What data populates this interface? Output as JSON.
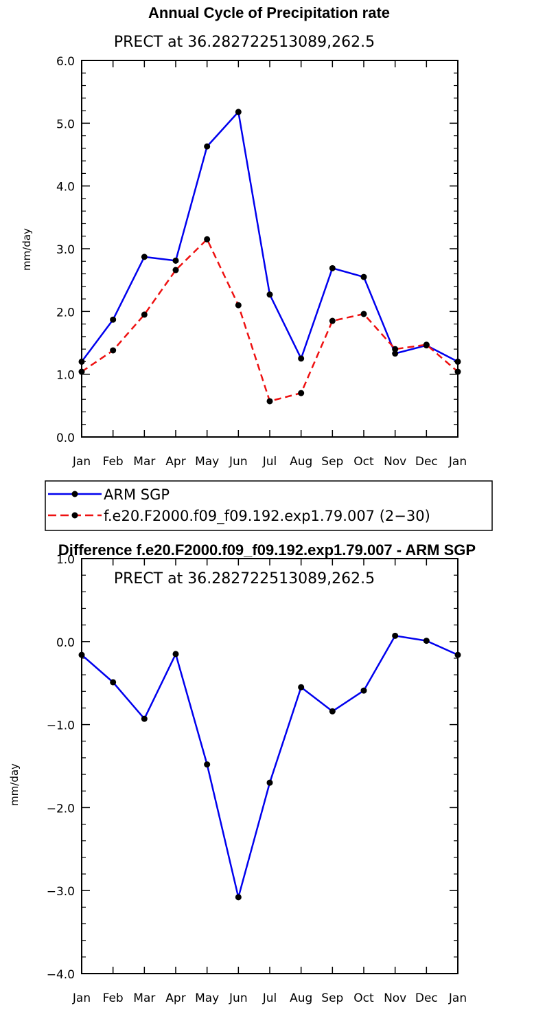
{
  "chart_data": [
    {
      "type": "line",
      "title": "Annual Cycle of Precipitation rate",
      "subtitle": "PRECT at 36.282722513089,262.5",
      "xlabel": "",
      "ylabel": "mm/day",
      "categories": [
        "Jan",
        "Feb",
        "Mar",
        "Apr",
        "May",
        "Jun",
        "Jul",
        "Aug",
        "Sep",
        "Oct",
        "Nov",
        "Dec",
        "Jan"
      ],
      "ylim": [
        0,
        6
      ],
      "yticks": [
        0,
        1,
        2,
        3,
        4,
        5,
        6
      ],
      "ytick_labels": [
        "0.0",
        "1.0",
        "2.0",
        "3.0",
        "4.0",
        "5.0",
        "6.0"
      ],
      "grid": false,
      "legend_position": "below",
      "series": [
        {
          "name": "ARM SGP",
          "color": "#0000ee",
          "dash": "solid",
          "values": [
            1.2,
            1.87,
            2.87,
            2.81,
            4.63,
            5.18,
            2.27,
            1.25,
            2.69,
            2.55,
            1.33,
            1.46,
            1.2
          ]
        },
        {
          "name": "f.e20.F2000.f09_f09.192.exp1.79.007 (2−30)",
          "color": "#ee1111",
          "dash": "dashed",
          "values": [
            1.04,
            1.38,
            1.95,
            2.66,
            3.15,
            2.1,
            0.57,
            0.7,
            1.85,
            1.96,
            1.4,
            1.47,
            1.04
          ]
        }
      ]
    },
    {
      "type": "line",
      "title": "Difference f.e20.F2000.f09_f09.192.exp1.79.007 - ARM SGP",
      "subtitle": "PRECT at 36.282722513089,262.5",
      "xlabel": "",
      "ylabel": "mm/day",
      "categories": [
        "Jan",
        "Feb",
        "Mar",
        "Apr",
        "May",
        "Jun",
        "Jul",
        "Aug",
        "Sep",
        "Oct",
        "Nov",
        "Dec",
        "Jan"
      ],
      "ylim": [
        -4,
        1
      ],
      "yticks": [
        -4,
        -3,
        -2,
        -1,
        0,
        1
      ],
      "ytick_labels": [
        "−4.0",
        "−3.0",
        "−2.0",
        "−1.0",
        "0.0",
        "1.0"
      ],
      "grid": false,
      "series": [
        {
          "name": "Difference",
          "color": "#0000ee",
          "dash": "solid",
          "values": [
            -0.16,
            -0.49,
            -0.93,
            -0.15,
            -1.48,
            -3.08,
            -1.7,
            -0.55,
            -0.84,
            -0.59,
            0.07,
            0.01,
            -0.16
          ]
        }
      ]
    }
  ]
}
